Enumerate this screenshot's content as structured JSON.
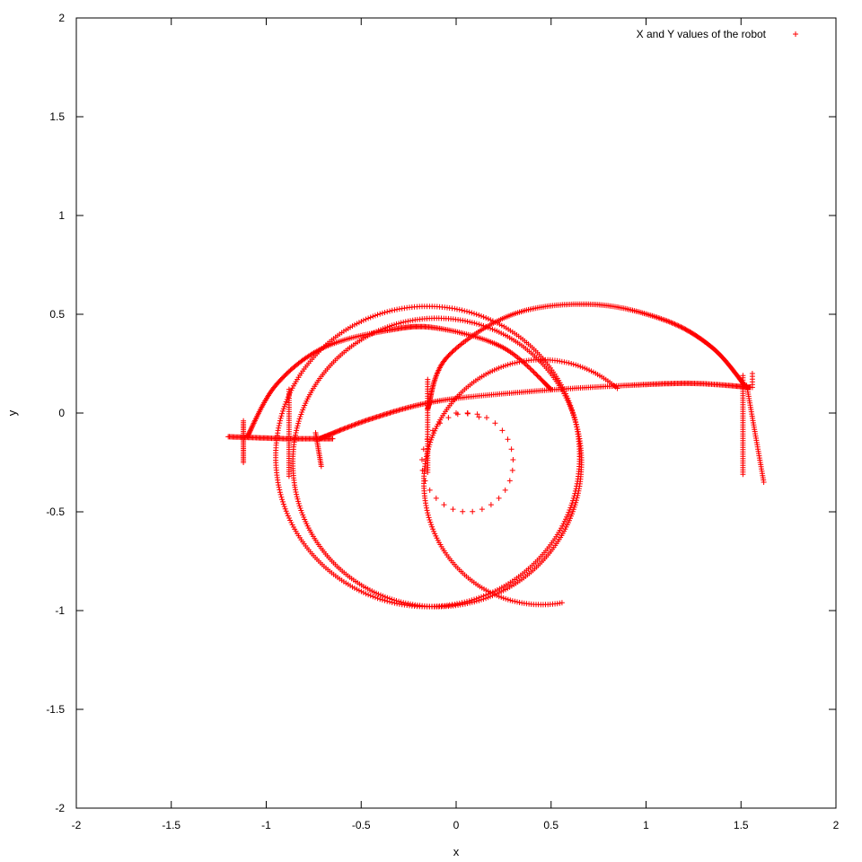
{
  "chart_data": {
    "type": "scatter",
    "title": "",
    "xlabel": "x",
    "ylabel": "y",
    "xlim": [
      -2,
      2
    ],
    "ylim": [
      -2,
      2
    ],
    "x_ticks": [
      "-2",
      "-1.5",
      "-1",
      "-0.5",
      "0",
      "0.5",
      "1",
      "1.5",
      "2"
    ],
    "y_ticks": [
      "2",
      "1.5",
      "1",
      "0.5",
      "0",
      "-0.5",
      "-1",
      "-1.5",
      "-2"
    ],
    "legend": {
      "position": "top-right",
      "marker": "+"
    },
    "grid": false,
    "series": [
      {
        "name": "X and Y values of the robot",
        "color": "#ff0000",
        "marker": "plus",
        "segments": [
          {
            "kind": "arc",
            "cx": 0.06,
            "cy": -0.25,
            "rx": 0.24,
            "ry": 0.25,
            "from_deg": 90,
            "to_deg": -270,
            "n": 30
          },
          {
            "kind": "line",
            "points": [
              [
                0.0,
                0.0
              ],
              [
                0.05,
                0.0
              ],
              [
                0.12,
                -0.02
              ]
            ],
            "n": 3
          },
          {
            "kind": "line",
            "points": [
              [
                -0.15,
                -0.3
              ],
              [
                -0.15,
                0.17
              ]
            ],
            "n": 40
          },
          {
            "kind": "ellipse",
            "cx": -0.15,
            "cy": -0.22,
            "rx": 0.8,
            "ry": 0.76,
            "n": 380
          },
          {
            "kind": "ellipse",
            "cx": -0.1,
            "cy": -0.25,
            "rx": 0.76,
            "ry": 0.73,
            "n": 380
          },
          {
            "kind": "arc",
            "cx": 0.45,
            "cy": -0.35,
            "rx": 0.62,
            "ry": 0.62,
            "from_deg": 50,
            "to_deg": 280,
            "n": 200
          },
          {
            "kind": "curve",
            "points": [
              [
                -0.15,
                0.02
              ],
              [
                -0.05,
                0.28
              ],
              [
                0.3,
                0.5
              ],
              [
                0.72,
                0.55
              ],
              [
                1.1,
                0.47
              ],
              [
                1.35,
                0.33
              ],
              [
                1.52,
                0.14
              ]
            ],
            "n": 260
          },
          {
            "kind": "curve",
            "points": [
              [
                -0.72,
                -0.13
              ],
              [
                -0.45,
                -0.03
              ],
              [
                -0.1,
                0.06
              ],
              [
                0.4,
                0.11
              ],
              [
                0.9,
                0.14
              ],
              [
                1.25,
                0.15
              ],
              [
                1.55,
                0.13
              ]
            ],
            "n": 300
          },
          {
            "kind": "curve",
            "points": [
              [
                -1.1,
                -0.12
              ],
              [
                -0.95,
                0.14
              ],
              [
                -0.7,
                0.33
              ],
              [
                -0.35,
                0.42
              ],
              [
                -0.1,
                0.43
              ],
              [
                0.25,
                0.33
              ],
              [
                0.5,
                0.12
              ]
            ],
            "n": 240
          },
          {
            "kind": "line",
            "points": [
              [
                -1.2,
                -0.12
              ],
              [
                -0.9,
                -0.13
              ],
              [
                -0.65,
                -0.13
              ]
            ],
            "n": 90
          },
          {
            "kind": "line",
            "points": [
              [
                -1.12,
                -0.04
              ],
              [
                -1.12,
                -0.25
              ]
            ],
            "n": 25
          },
          {
            "kind": "line",
            "points": [
              [
                -0.88,
                -0.32
              ],
              [
                -0.88,
                0.12
              ]
            ],
            "n": 40
          },
          {
            "kind": "line",
            "points": [
              [
                -0.74,
                -0.1
              ],
              [
                -0.71,
                -0.27
              ]
            ],
            "n": 20
          },
          {
            "kind": "line",
            "points": [
              [
                1.51,
                -0.31
              ],
              [
                1.51,
                0.19
              ]
            ],
            "n": 45
          },
          {
            "kind": "line",
            "points": [
              [
                1.53,
                0.14
              ],
              [
                1.62,
                -0.35
              ]
            ],
            "n": 45
          },
          {
            "kind": "line",
            "points": [
              [
                1.56,
                0.2
              ],
              [
                1.56,
                0.13
              ]
            ],
            "n": 6
          }
        ]
      }
    ]
  }
}
